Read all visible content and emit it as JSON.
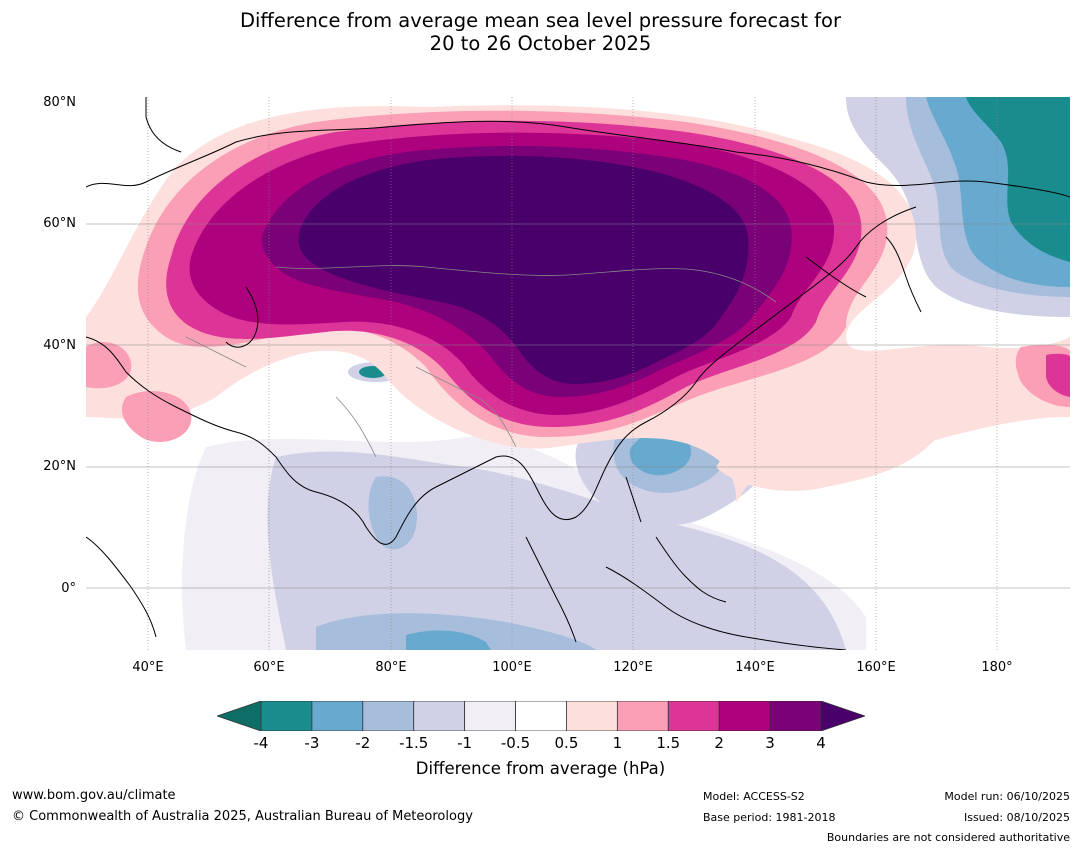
{
  "title": {
    "line1": "Difference from average mean sea level pressure forecast for",
    "line2": "20 to 26 October 2025"
  },
  "axes": {
    "lat_labels": [
      "80°N",
      "60°N",
      "40°N",
      "20°N",
      "0°"
    ],
    "lon_labels": [
      "40°E",
      "60°E",
      "80°E",
      "100°E",
      "120°E",
      "140°E",
      "160°E",
      "180°"
    ]
  },
  "colorbar": {
    "label": "Difference from average (hPa)",
    "ticks": [
      "-4",
      "-3",
      "-2",
      "-1.5",
      "-1",
      "-0.5",
      "0.5",
      "1",
      "1.5",
      "2",
      "3",
      "4"
    ],
    "colors": [
      "#0e6e66",
      "#1a8c8e",
      "#67a9cf",
      "#a6bddb",
      "#d0d1e6",
      "#f1eef6",
      "#ffffff",
      "#fde0dd",
      "#fa9fb5",
      "#dd3497",
      "#ae017e",
      "#7a0177",
      "#49006a"
    ]
  },
  "footer": {
    "website": "www.bom.gov.au/climate",
    "copyright": "© Commonwealth of Australia 2025, Australian Bureau of Meteorology",
    "model": "Model: ACCESS-S2",
    "base_period": "Base period: 1981-2018",
    "model_run": "Model run: 06/10/2025",
    "issued": "Issued: 08/10/2025",
    "boundaries": "Boundaries are not considered authoritative"
  }
}
